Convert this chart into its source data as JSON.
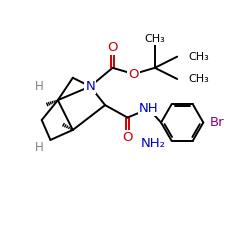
{
  "bg_color": "#ffffff",
  "atom_colors": {
    "C": "#000000",
    "N": "#0000cc",
    "O": "#cc0000",
    "H": "#808080",
    "Br": "#8b008b",
    "NH": "#0000cc",
    "NH2": "#0000cc"
  },
  "bond_color": "#000000",
  "bond_width": 1.4,
  "font_size": 8.5,
  "fig_width": 2.5,
  "fig_height": 2.5,
  "dpi": 100,
  "xlim": [
    0,
    10
  ],
  "ylim": [
    0,
    10
  ]
}
